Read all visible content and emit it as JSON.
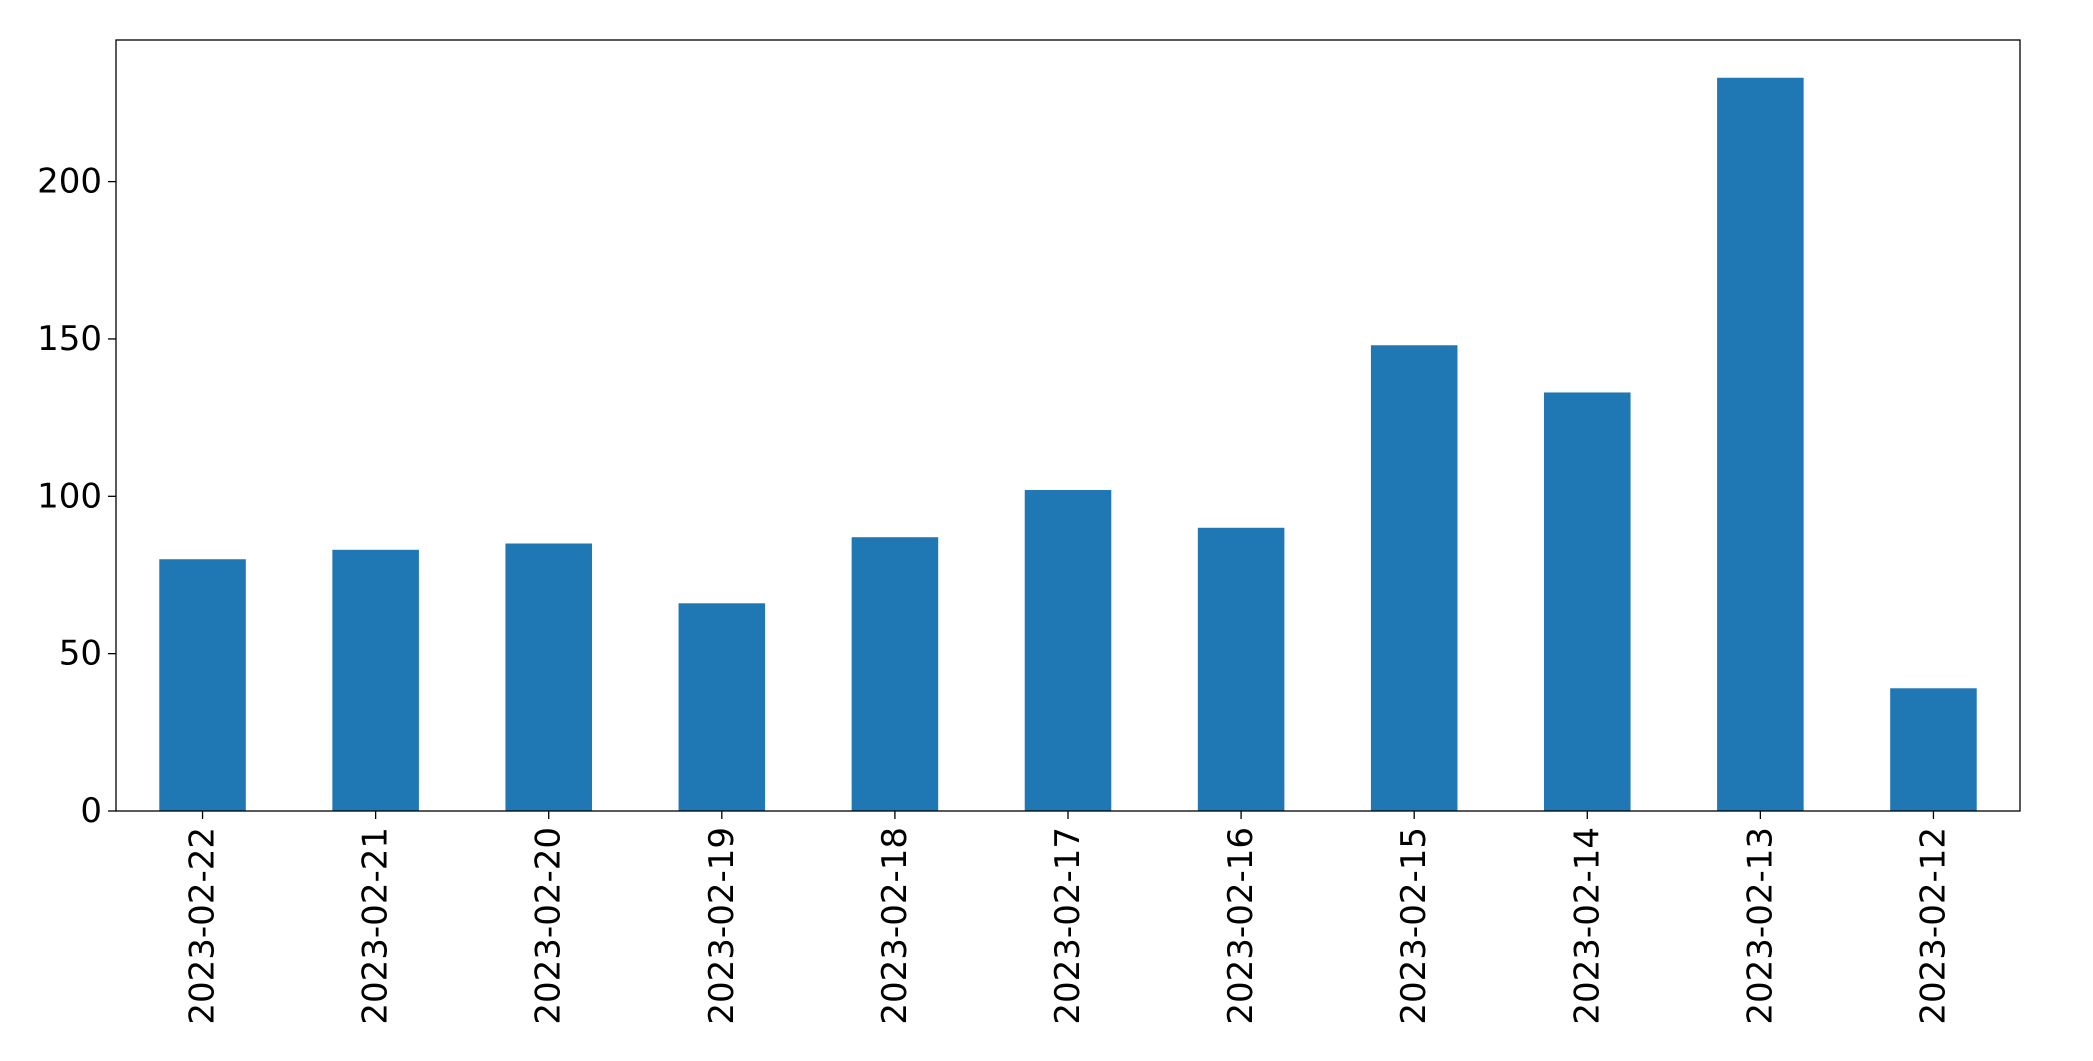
{
  "chart_data": {
    "type": "bar",
    "title": "",
    "xlabel": "",
    "ylabel": "",
    "categories": [
      "2023-02-22",
      "2023-02-21",
      "2023-02-20",
      "2023-02-19",
      "2023-02-18",
      "2023-02-17",
      "2023-02-16",
      "2023-02-15",
      "2023-02-14",
      "2023-02-13",
      "2023-02-12"
    ],
    "values": [
      80,
      83,
      85,
      66,
      87,
      102,
      90,
      148,
      133,
      233,
      39
    ],
    "ylim": [
      0,
      245
    ],
    "yticks": [
      0,
      50,
      100,
      150,
      200
    ],
    "legend": "none",
    "grid": false,
    "colors": {
      "bar": "#1f77b4",
      "axis": "#000000",
      "background": "#ffffff"
    }
  }
}
